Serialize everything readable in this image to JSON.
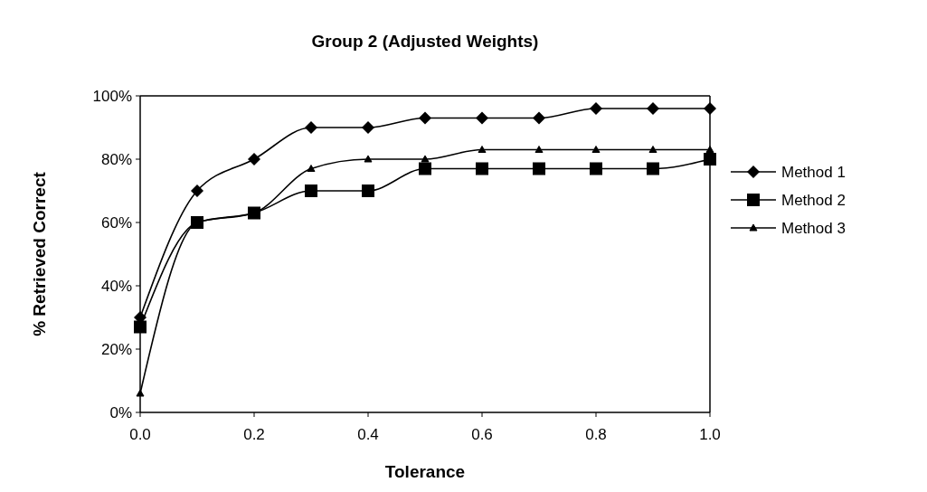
{
  "chart_data": {
    "type": "line",
    "title": "Group 2 (Adjusted Weights)",
    "xlabel": "Tolerance",
    "ylabel": "% Retrieved Correct",
    "x": [
      0,
      0.1,
      0.2,
      0.3,
      0.4,
      0.5,
      0.6,
      0.7,
      0.8,
      0.9,
      1.0
    ],
    "series": [
      {
        "name": "Method 1",
        "color": "#000000",
        "marker": "diamond",
        "values": [
          30,
          70,
          80,
          90,
          90,
          93,
          93,
          93,
          96,
          96,
          96
        ]
      },
      {
        "name": "Method 2",
        "color": "#000000",
        "marker": "square",
        "values": [
          27,
          60,
          63,
          70,
          70,
          77,
          77,
          77,
          77,
          77,
          80
        ]
      },
      {
        "name": "Method 3",
        "color": "#000000",
        "marker": "triangle",
        "values": [
          6,
          60,
          63,
          77,
          80,
          80,
          83,
          83,
          83,
          83,
          83
        ]
      }
    ],
    "xlim": [
      0,
      1
    ],
    "xticks": [
      {
        "value": 0,
        "label": "0.0"
      },
      {
        "value": 0.2,
        "label": "0.2"
      },
      {
        "value": 0.4,
        "label": "0.4"
      },
      {
        "value": 0.6,
        "label": "0.6"
      },
      {
        "value": 0.8,
        "label": "0.8"
      },
      {
        "value": 1,
        "label": "1.0"
      }
    ],
    "ylim": [
      0,
      100
    ],
    "yticks": [
      {
        "value": 0,
        "label": "0%"
      },
      {
        "value": 20,
        "label": "20%"
      },
      {
        "value": 40,
        "label": "40%"
      },
      {
        "value": 60,
        "label": "60%"
      },
      {
        "value": 80,
        "label": "80%"
      },
      {
        "value": 100,
        "label": "100%"
      }
    ],
    "legend": "right",
    "grid": false
  }
}
